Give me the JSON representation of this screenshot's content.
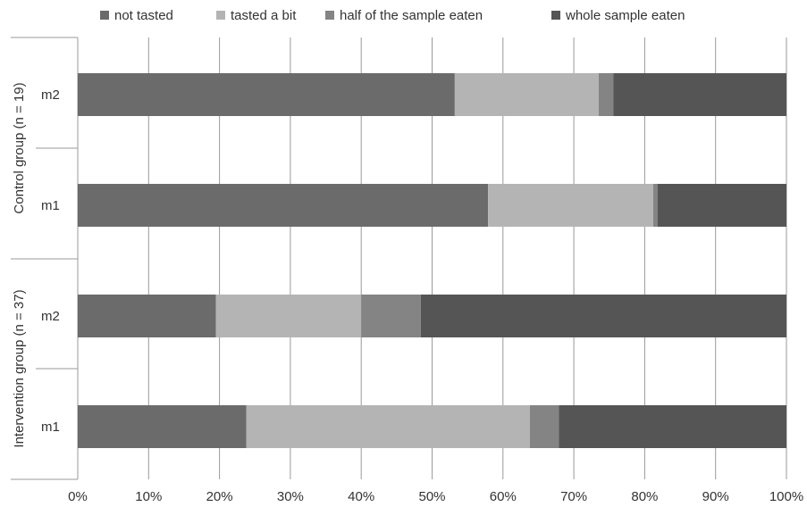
{
  "chart_data": {
    "type": "bar",
    "orientation": "horizontal",
    "stacked": "percent",
    "groups": [
      {
        "label": "Control group (n = 19)",
        "categories": [
          "m2",
          "m1"
        ]
      },
      {
        "label": "Intervention group (n = 37)",
        "categories": [
          "m2",
          "m1"
        ]
      }
    ],
    "rows": [
      "Control group m2",
      "Control group m1",
      "Intervention group m2",
      "Intervention group m1"
    ],
    "series": [
      {
        "name": "not tasted",
        "color": "#6b6b6b",
        "values": [
          53.2,
          57.9,
          19.5,
          23.8
        ]
      },
      {
        "name": "tasted a bit",
        "color": "#b4b4b4",
        "values": [
          20.3,
          23.3,
          20.5,
          40.0
        ]
      },
      {
        "name": "half of the sample eaten",
        "color": "#848484",
        "values": [
          2.1,
          0.6,
          8.4,
          4.1
        ]
      },
      {
        "name": "whole sample eaten",
        "color": "#555555",
        "values": [
          24.4,
          18.2,
          51.6,
          32.1
        ]
      }
    ],
    "x_ticks": [
      "0%",
      "10%",
      "20%",
      "30%",
      "40%",
      "50%",
      "60%",
      "70%",
      "80%",
      "90%",
      "100%"
    ],
    "xlim": [
      0,
      100
    ],
    "grid": true,
    "legend_position": "top"
  }
}
